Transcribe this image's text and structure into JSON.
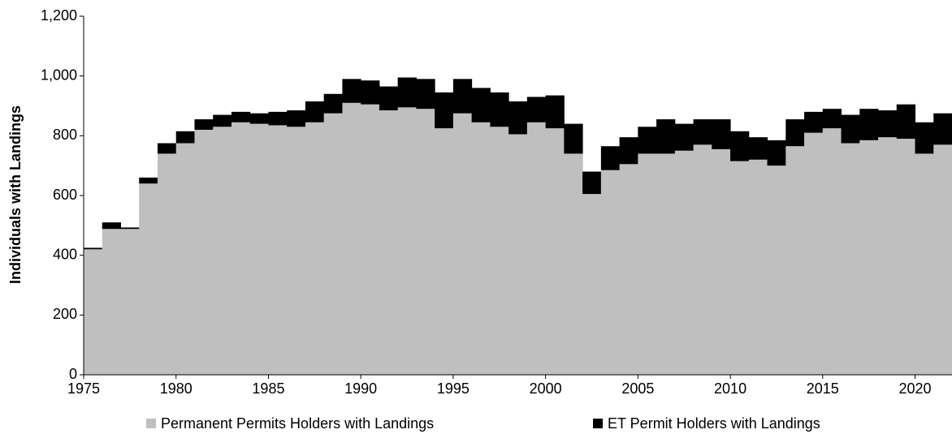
{
  "chart_data": {
    "type": "stacked-step-area",
    "ylabel": "Individuals with Landings",
    "x": [
      1975,
      1976,
      1977,
      1978,
      1979,
      1980,
      1981,
      1982,
      1983,
      1984,
      1985,
      1986,
      1987,
      1988,
      1989,
      1990,
      1991,
      1992,
      1993,
      1994,
      1995,
      1996,
      1997,
      1998,
      1999,
      2000,
      2001,
      2002,
      2003,
      2004,
      2005,
      2006,
      2007,
      2008,
      2009,
      2010,
      2011,
      2012,
      2013,
      2014,
      2015,
      2016,
      2017,
      2018,
      2019,
      2020,
      2021
    ],
    "series": [
      {
        "name": "Permanent Permits Holders with Landings",
        "color": "#bfbfbf",
        "values": [
          420,
          488,
          488,
          640,
          740,
          775,
          820,
          830,
          845,
          840,
          835,
          830,
          845,
          875,
          910,
          905,
          885,
          895,
          890,
          825,
          875,
          845,
          830,
          805,
          845,
          825,
          740,
          605,
          685,
          705,
          740,
          740,
          750,
          770,
          755,
          715,
          720,
          700,
          765,
          810,
          825,
          775,
          785,
          795,
          790,
          740,
          770
        ]
      },
      {
        "name": "ET Permit Holders with Landings",
        "color": "#000000",
        "values": [
          5,
          22,
          5,
          20,
          35,
          40,
          35,
          40,
          35,
          35,
          45,
          55,
          70,
          65,
          80,
          80,
          80,
          100,
          100,
          120,
          115,
          115,
          115,
          110,
          85,
          110,
          100,
          75,
          80,
          90,
          90,
          115,
          90,
          85,
          100,
          100,
          75,
          85,
          90,
          70,
          65,
          95,
          105,
          90,
          115,
          105,
          105
        ]
      }
    ],
    "xlim": [
      1975,
      2022
    ],
    "xticks": [
      1975,
      1980,
      1985,
      1990,
      1995,
      2000,
      2005,
      2010,
      2015,
      2020
    ],
    "ylim": [
      0,
      1200
    ],
    "yticks": [
      0,
      200,
      400,
      600,
      800,
      {
        "value": 1000,
        "label": "1,000"
      },
      {
        "value": 1200,
        "label": "1,200"
      }
    ],
    "legend": "bottom"
  }
}
